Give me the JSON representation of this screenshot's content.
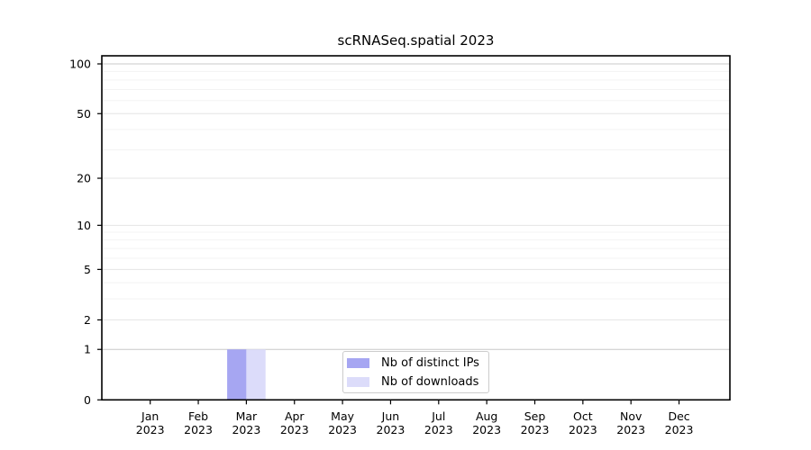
{
  "chart_data": {
    "type": "bar",
    "title": "scRNASeq.spatial 2023",
    "categories": [
      "Jan 2023",
      "Feb 2023",
      "Mar 2023",
      "Apr 2023",
      "May 2023",
      "Jun 2023",
      "Jul 2023",
      "Aug 2023",
      "Sep 2023",
      "Oct 2023",
      "Nov 2023",
      "Dec 2023"
    ],
    "month_labels": [
      "Jan",
      "Feb",
      "Mar",
      "Apr",
      "May",
      "Jun",
      "Jul",
      "Aug",
      "Sep",
      "Oct",
      "Nov",
      "Dec"
    ],
    "year_label": "2023",
    "series": [
      {
        "name": "Nb of distinct IPs",
        "color": "#a6a6f2",
        "values": [
          0,
          0,
          1,
          0,
          0,
          0,
          0,
          0,
          0,
          0,
          0,
          0
        ]
      },
      {
        "name": "Nb of downloads",
        "color": "#dcdcfa",
        "values": [
          0,
          0,
          1,
          0,
          0,
          0,
          0,
          0,
          0,
          0,
          0,
          0
        ]
      }
    ],
    "y_scale": "log1p",
    "y_ticks": [
      0,
      1,
      2,
      5,
      10,
      20,
      50,
      100
    ],
    "y_minor_gridlines": [
      3,
      4,
      6,
      7,
      8,
      9,
      30,
      40,
      60,
      70,
      80,
      90
    ],
    "ylim": [
      0,
      112
    ],
    "grid": "horizontal-major-and-minor",
    "legend_position": "inside-bottom-center"
  },
  "colors": {
    "bar_distinct_ips": "#a6a6f2",
    "bar_downloads": "#dcdcfa",
    "grid_major": "#e4e4e4",
    "grid_emphasis": "#c8c8c8",
    "grid_minor": "#f3f3f3",
    "axis": "#000000",
    "legend_border": "#cccccc",
    "background": "#ffffff"
  }
}
